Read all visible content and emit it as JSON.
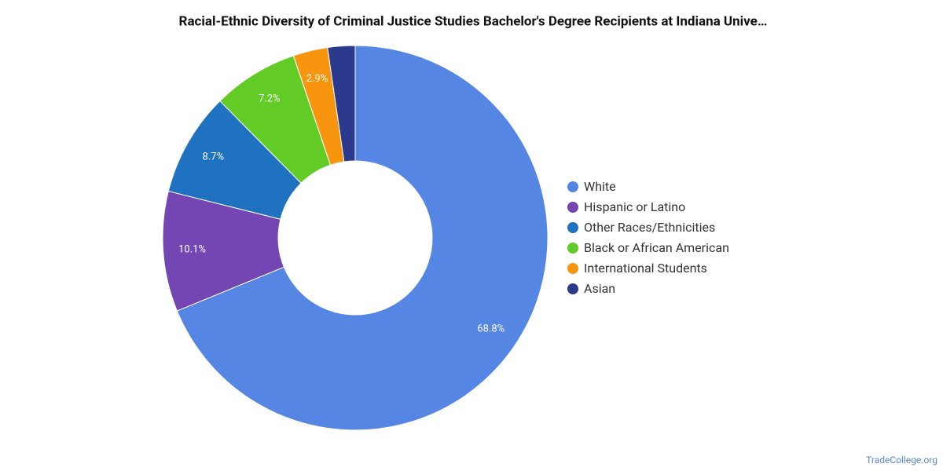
{
  "chart_data": {
    "type": "donut",
    "title": "Racial-Ethnic Diversity of Criminal Justice Studies Bachelor's Degree Recipients at Indiana Unive…",
    "categories": [
      "White",
      "Hispanic or Latino",
      "Other Races/Ethnicities",
      "Black or African American",
      "International Students",
      "Asian"
    ],
    "values": [
      68.8,
      10.1,
      8.7,
      7.2,
      2.9,
      2.3
    ],
    "value_labels": [
      "68.8%",
      "10.1%",
      "8.7%",
      "7.2%",
      "2.9%",
      null
    ],
    "colors": [
      "#5586e4",
      "#7446b4",
      "#1f72bf",
      "#62cb25",
      "#f7950f",
      "#2c3a8e"
    ],
    "legend": "right",
    "source": "TradeCollege.org"
  }
}
